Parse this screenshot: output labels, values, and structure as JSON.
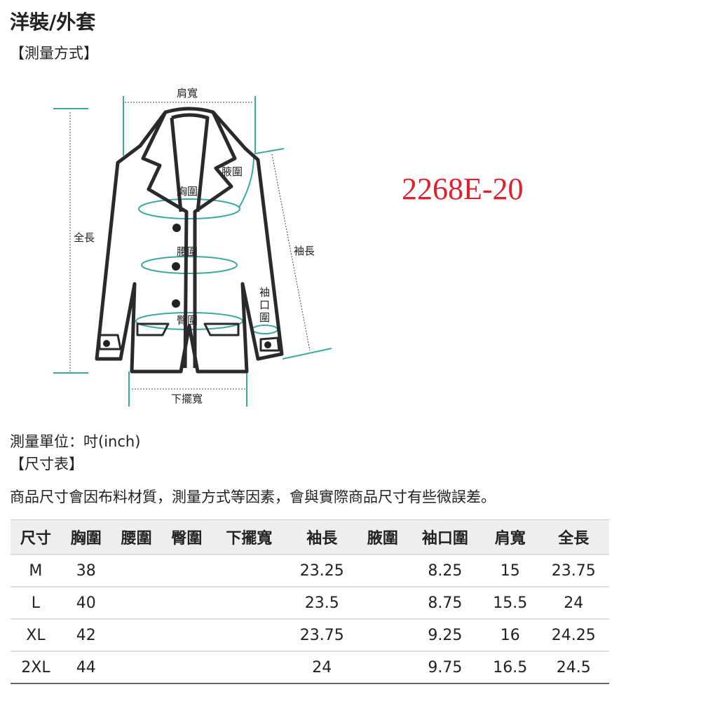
{
  "title": "洋裝/外套",
  "method_label": "【測量方式】",
  "product_code": "2268E-20",
  "diagram": {
    "shoulder": "肩寬",
    "armpit": "腋圍",
    "chest": "胸圍",
    "length": "全長",
    "sleeve": "袖長",
    "waist": "腰圍",
    "cuff": [
      "袖",
      "口",
      "圍"
    ],
    "hip": "臀圍",
    "hem": "下擺寬",
    "accent_color": "#3aaa9f"
  },
  "unit": "測量單位：吋(inch)",
  "size_table_label": "【尺寸表】",
  "note": "商品尺寸會因布料材質，測量方式等因素，會與實際商品尺寸有些微誤差。",
  "table": {
    "headers": [
      "尺寸",
      "胸圍",
      "腰圍",
      "臀圍",
      "下擺寬",
      "袖長",
      "腋圍",
      "袖口圍",
      "肩寬",
      "全長"
    ],
    "rows": [
      [
        "M",
        "38",
        "",
        "",
        "",
        "23.25",
        "",
        "8.25",
        "15",
        "23.75"
      ],
      [
        "L",
        "40",
        "",
        "",
        "",
        "23.5",
        "",
        "8.75",
        "15.5",
        "24"
      ],
      [
        "XL",
        "42",
        "",
        "",
        "",
        "23.75",
        "",
        "9.25",
        "16",
        "24.25"
      ],
      [
        "2XL",
        "44",
        "",
        "",
        "",
        "24",
        "",
        "9.75",
        "16.5",
        "24.5"
      ]
    ]
  }
}
